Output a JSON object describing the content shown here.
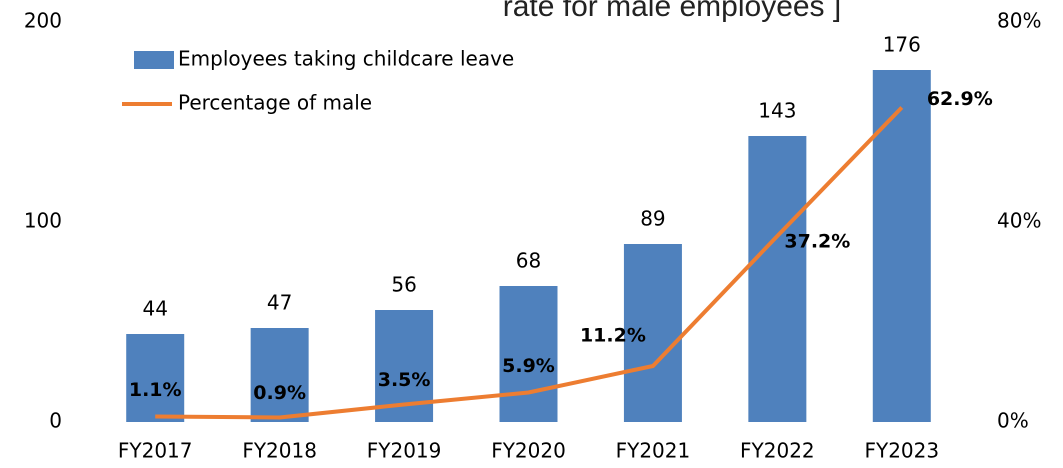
{
  "chart_data": {
    "type": "bar",
    "title": "rate for male employees ]",
    "categories": [
      "FY2017",
      "FY2018",
      "FY2019",
      "FY2020",
      "FY2021",
      "FY2022",
      "FY2023"
    ],
    "series": [
      {
        "name": "Employees taking childcare leave",
        "color": "#4f81bd",
        "type": "bar",
        "values": [
          44,
          47,
          56,
          68,
          89,
          143,
          176
        ]
      },
      {
        "name": "Percentage of male",
        "color": "#ed7d31",
        "type": "line",
        "axis": "y2",
        "values": [
          1.1,
          0.9,
          3.5,
          5.9,
          11.2,
          37.2,
          62.9
        ],
        "value_labels": [
          "1.1%",
          "0.9%",
          "3.5%",
          "5.9%",
          "11.2%",
          "37.2%",
          "62.9%"
        ]
      }
    ],
    "ylim": [
      0,
      200
    ],
    "yticks": [
      0,
      100,
      200
    ],
    "y2lim": [
      0,
      80
    ],
    "y2ticks": [
      {
        "value": 0,
        "label": "0%"
      },
      {
        "value": 40,
        "label": "40%"
      },
      {
        "value": 80,
        "label": "80%"
      }
    ],
    "grid": false
  }
}
